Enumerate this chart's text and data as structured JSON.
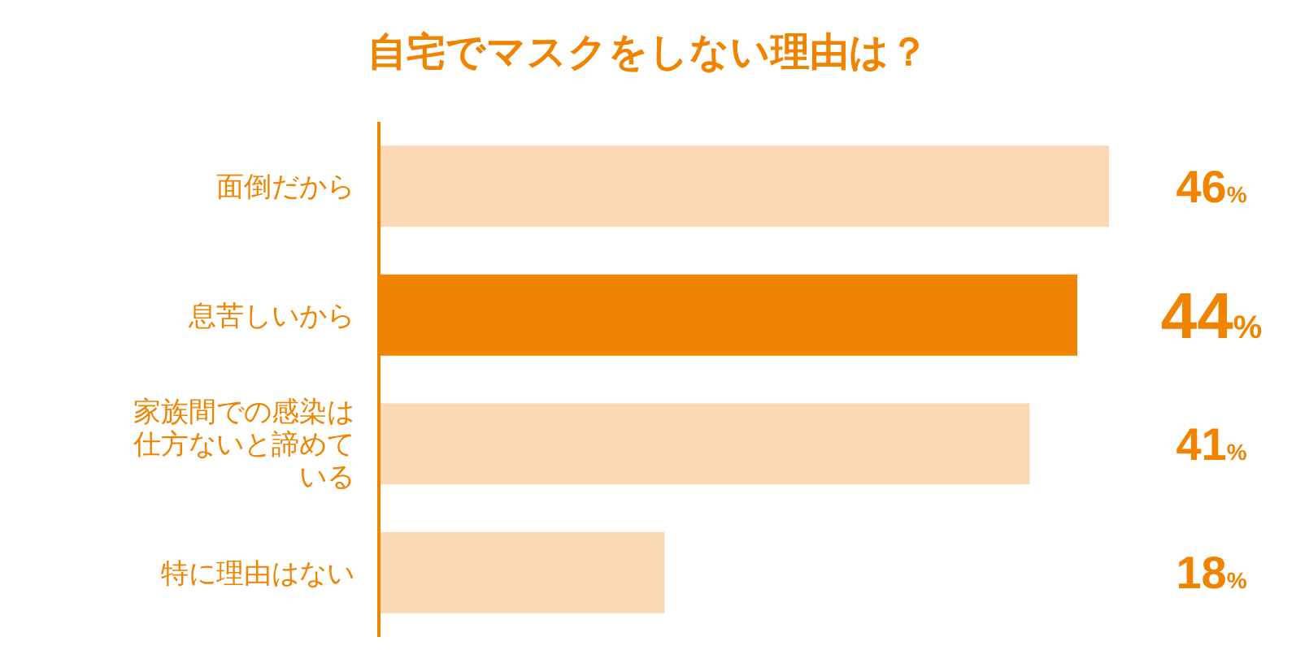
{
  "chart_data": {
    "type": "bar",
    "orientation": "horizontal",
    "title": "自宅でマスクをしない理由は？",
    "categories": [
      "面倒だから",
      "息苦しいから",
      "家族間での感染は仕方ないと諦めている",
      "特に理由はない"
    ],
    "values": [
      46,
      44,
      41,
      18
    ],
    "colors": [
      "#fad9b4",
      "#f08300",
      "#fad9b4",
      "#fad9b4"
    ],
    "value_labels": [
      "46%",
      "44%",
      "41%",
      "18%"
    ]
  }
}
